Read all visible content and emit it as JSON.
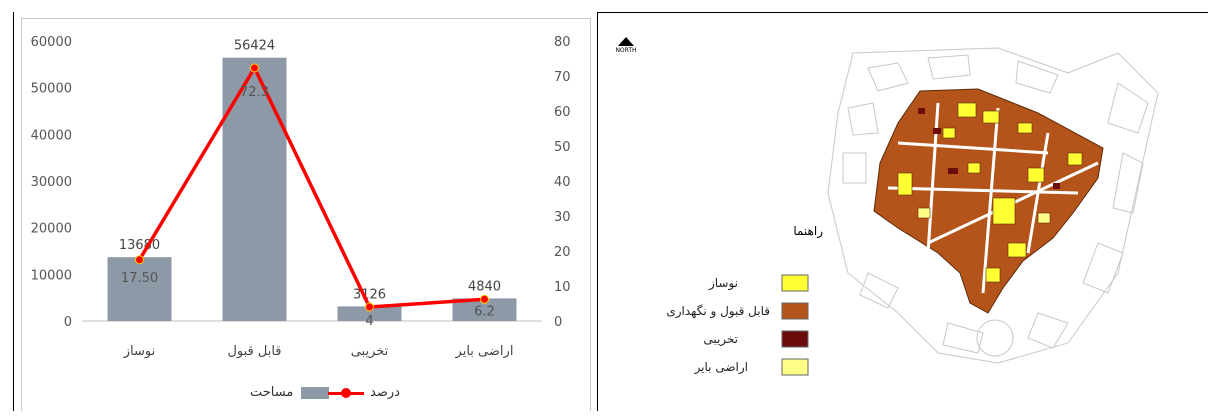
{
  "chart_data": {
    "type": "bar",
    "categories": [
      "نوساز",
      "قابل قبول",
      "تخریبی",
      "اراضی بایر"
    ],
    "series": [
      {
        "name": "مساحت",
        "kind": "bar",
        "axis": "left",
        "values": [
          13680,
          56424,
          3126,
          4840
        ],
        "labels": [
          "13680",
          "56424",
          "3126",
          "4840"
        ],
        "color": "#8d99a6"
      },
      {
        "name": "درصد",
        "kind": "line",
        "axis": "right",
        "values": [
          17.5,
          72.3,
          4,
          6.2
        ],
        "labels": [
          "17.50",
          "72.3",
          "4",
          "6.2"
        ],
        "color": "#ff0000"
      }
    ],
    "left_axis": {
      "ylim": [
        0,
        60000
      ],
      "ticks": [
        0,
        10000,
        20000,
        30000,
        40000,
        50000,
        60000
      ]
    },
    "right_axis": {
      "ylim": [
        0,
        80
      ],
      "ticks": [
        0,
        10,
        20,
        30,
        40,
        50,
        60,
        70,
        80
      ]
    },
    "grid": false,
    "legend_placement": "bottom"
  },
  "map": {
    "north_label": "NORTH",
    "legend_title": "راهنما",
    "legend": [
      {
        "label": "نوساز",
        "color": "#ffff33"
      },
      {
        "label": "قابل قبول و نگهداری",
        "color": "#b5541a"
      },
      {
        "label": "تخریبی",
        "color": "#6b0d0d"
      },
      {
        "label": "اراضی بایر",
        "color": "#ffff88"
      }
    ]
  }
}
